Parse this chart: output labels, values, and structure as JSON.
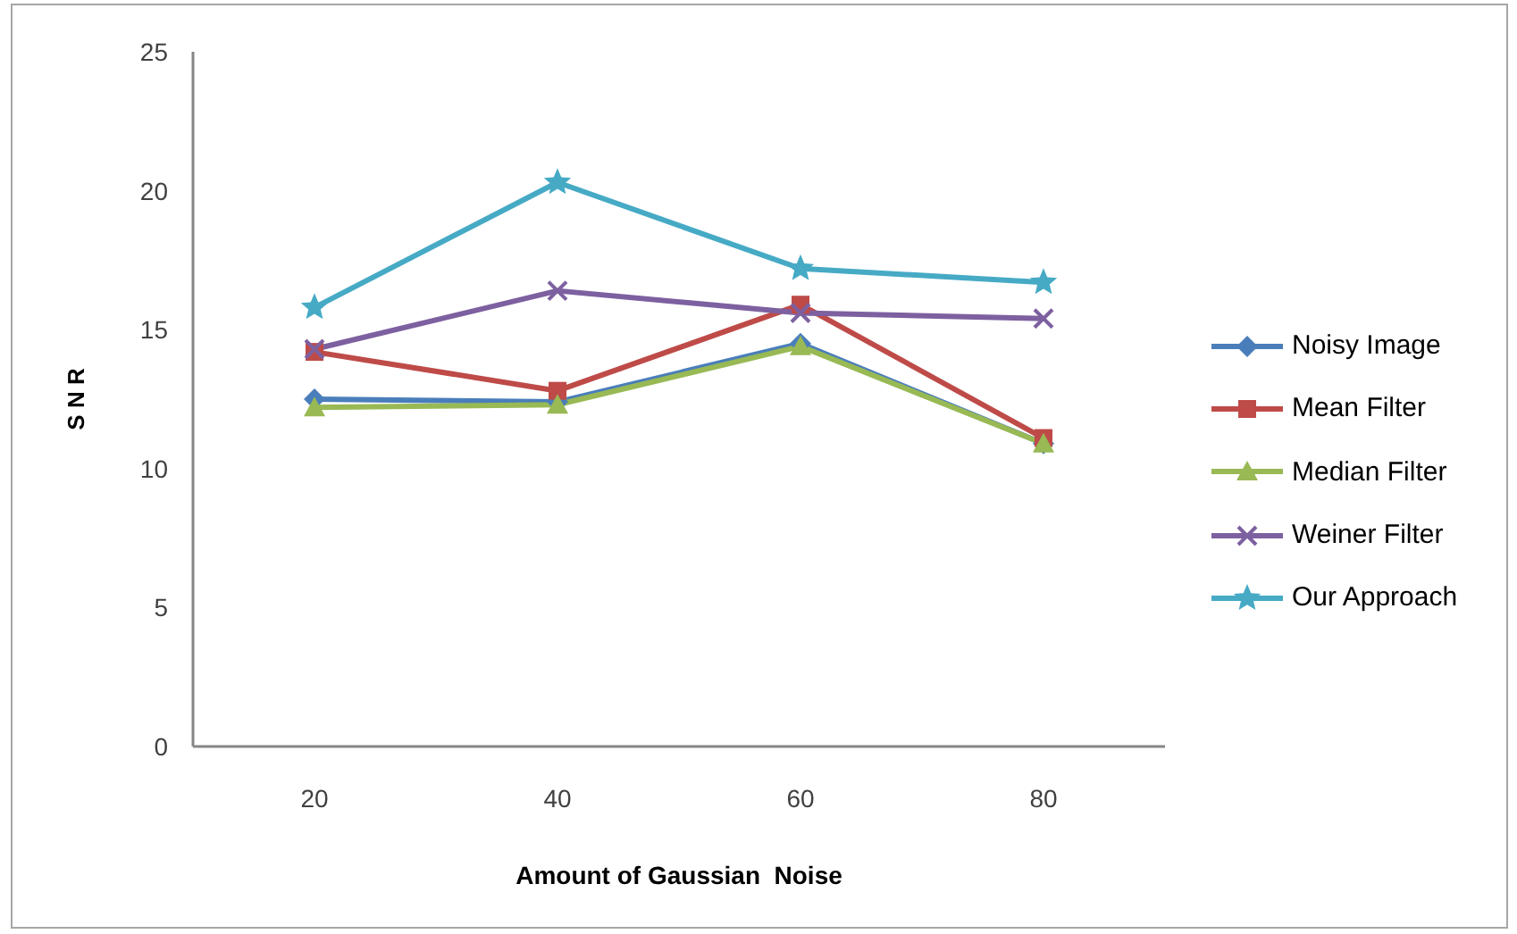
{
  "chart_data": {
    "type": "line",
    "xlabel": "Amount of Gaussian  Noise",
    "ylabel": "S N R",
    "categories": [
      "20",
      "40",
      "60",
      "80"
    ],
    "ylim": [
      0,
      25
    ],
    "yticks": [
      0,
      5,
      10,
      15,
      20,
      25
    ],
    "legend": "right",
    "series": [
      {
        "name": "Noisy Image",
        "color": "#4a7ebb",
        "marker": "diamond",
        "values": [
          12.5,
          12.4,
          14.5,
          10.9
        ]
      },
      {
        "name": "Mean Filter",
        "color": "#be4b48",
        "marker": "square",
        "values": [
          14.2,
          12.8,
          15.9,
          11.1
        ]
      },
      {
        "name": "Median Filter",
        "color": "#98b954",
        "marker": "triangle",
        "values": [
          12.2,
          12.3,
          14.4,
          10.9
        ]
      },
      {
        "name": "Weiner Filter",
        "color": "#7d60a0",
        "marker": "cross",
        "values": [
          14.3,
          16.4,
          15.6,
          15.4
        ]
      },
      {
        "name": "Our Approach",
        "color": "#46aac5",
        "marker": "star",
        "values": [
          15.8,
          20.3,
          17.2,
          16.7
        ]
      }
    ]
  }
}
